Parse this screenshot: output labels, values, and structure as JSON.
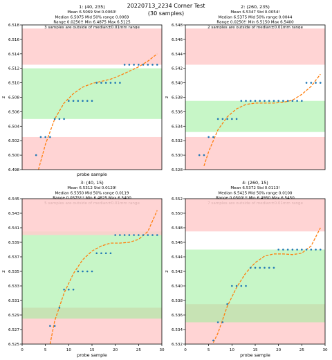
{
  "figure": {
    "title": "20220713_2234 Corner Test",
    "subtitle": "(30 samples)"
  },
  "chart_data": [
    {
      "type": "scatter",
      "subplot": "top-left",
      "header": [
        "1: (40, 235)",
        "Mean 6.5069  Std 0.0060!",
        "Median 6.5075  Mid 50% range 0.0069",
        "Range 0.0250!!  Min 6.4875  Max 6.5125",
        "3 samples are outside of median±0.01mm range"
      ],
      "xlabel": "probe sample",
      "ylabel": "z",
      "xlim": [
        0,
        30
      ],
      "ylim": [
        6.498,
        6.518
      ],
      "xticks": [],
      "yticks": [
        "6.498",
        "6.500",
        "6.502",
        "6.504",
        "6.506",
        "6.508",
        "6.510",
        "6.512",
        "6.514",
        "6.516",
        "6.518"
      ],
      "bands": [
        {
          "from": 6.4975,
          "to": 6.5025,
          "color": "#ffcccc"
        },
        {
          "from": 6.505,
          "to": 6.512,
          "color": "#99ee99"
        },
        {
          "from": 6.5125,
          "to": 6.5175,
          "color": "#ffcccc"
        }
      ],
      "points": {
        "x": [
          3,
          4,
          5,
          6,
          7,
          8,
          9,
          10,
          11,
          12,
          13,
          14,
          15,
          16,
          17,
          18,
          19,
          20,
          21,
          22,
          23,
          24,
          25,
          26,
          27,
          28,
          29
        ],
        "y": [
          6.5,
          6.5025,
          6.5025,
          6.5025,
          6.505,
          6.505,
          6.505,
          6.5075,
          6.5075,
          6.5075,
          6.5075,
          6.5075,
          6.5075,
          6.51,
          6.51,
          6.51,
          6.51,
          6.51,
          6.51,
          6.5125,
          6.5125,
          6.5125,
          6.5125,
          6.5125,
          6.5125,
          6.5125,
          6.5125
        ]
      },
      "fit_curve": {
        "x": [
          3.5,
          5,
          7,
          9,
          11,
          13,
          15,
          17,
          19,
          21,
          23,
          25,
          27,
          29
        ],
        "y": [
          6.498,
          6.5015,
          6.505,
          6.5072,
          6.5085,
          6.5094,
          6.5099,
          6.5102,
          6.5105,
          6.511,
          6.5116,
          6.5122,
          6.513,
          6.514
        ]
      },
      "point_color": "#1f77b4",
      "curve_color": "#ff7f0e"
    },
    {
      "type": "scatter",
      "subplot": "top-right",
      "header": [
        "2: (260, 235)",
        "Mean 6.5347  Std 0.0054!",
        "Median 6.5375  Mid 50% range 0.0044",
        "Range 0.0250!!  Min 6.5150  Max 6.5400",
        "2 samples are outside of median±0.01mm range"
      ],
      "xlabel": "",
      "ylabel": "z",
      "xlim": [
        0,
        30
      ],
      "ylim": [
        6.528,
        6.548
      ],
      "xticks": [],
      "yticks": [
        "6.528",
        "6.530",
        "6.532",
        "6.534",
        "6.536",
        "6.538",
        "6.540",
        "6.542",
        "6.544",
        "6.546",
        "6.548"
      ],
      "bands": [
        {
          "from": 6.5275,
          "to": 6.5325,
          "color": "#ffcccc"
        },
        {
          "from": 6.5332,
          "to": 6.5375,
          "color": "#99ee99"
        },
        {
          "from": 6.5425,
          "to": 6.5475,
          "color": "#ffcccc"
        }
      ],
      "points": {
        "x": [
          3,
          4,
          5,
          6,
          7,
          8,
          9,
          10,
          11,
          12,
          13,
          14,
          15,
          16,
          17,
          18,
          19,
          20,
          21,
          22,
          23,
          24,
          25,
          26,
          27,
          28,
          29
        ],
        "y": [
          6.53,
          6.53,
          6.5325,
          6.5325,
          6.535,
          6.535,
          6.535,
          6.535,
          6.535,
          6.5375,
          6.5375,
          6.5375,
          6.5375,
          6.5375,
          6.5375,
          6.5375,
          6.5375,
          6.5375,
          6.5375,
          6.5375,
          6.5375,
          6.5375,
          6.5375,
          6.54,
          6.54,
          6.54,
          6.54
        ]
      },
      "fit_curve": {
        "x": [
          4,
          5,
          7,
          9,
          11,
          13,
          15,
          17,
          19,
          21,
          23,
          25,
          27,
          29
        ],
        "y": [
          6.5285,
          6.5305,
          6.5335,
          6.5353,
          6.5364,
          6.537,
          6.5372,
          6.5372,
          6.5372,
          6.5373,
          6.5376,
          6.5384,
          6.5395,
          6.5412
        ]
      },
      "point_color": "#1f77b4",
      "curve_color": "#ff7f0e"
    },
    {
      "type": "scatter",
      "subplot": "bottom-left",
      "header": [
        "3: (40, 15)",
        "Mean 6.5312  Std 0.0129!",
        "Median 6.5350  Mid 50% range 0.0119",
        "Range 0.0575!!!  Min 6.4825  Max 6.5400",
        "5 samples are outside of median±0.01mm range"
      ],
      "xlabel": "probe sample",
      "ylabel": "z",
      "xlim": [
        0,
        30
      ],
      "ylim": [
        6.525,
        6.545
      ],
      "xticks": [
        "0",
        "5",
        "10",
        "15",
        "20",
        "25",
        "30"
      ],
      "yticks": [
        "6.525",
        "6.527",
        "6.529",
        "6.531",
        "6.533",
        "6.535",
        "6.537",
        "6.539",
        "6.541",
        "6.543",
        "6.545"
      ],
      "bands": [
        {
          "from": 6.525,
          "to": 6.53,
          "color": "#ffcccc"
        },
        {
          "from": 6.5285,
          "to": 6.5405,
          "color": "#99ee99"
        },
        {
          "from": 6.54,
          "to": 6.545,
          "color": "#ffcccc"
        }
      ],
      "points": {
        "x": [
          6,
          7,
          8,
          9,
          10,
          11,
          12,
          13,
          14,
          15,
          16,
          17,
          18,
          19,
          20,
          21,
          22,
          23,
          24,
          25,
          26,
          27,
          28,
          29
        ],
        "y": [
          6.5275,
          6.5275,
          6.53,
          6.5325,
          6.5325,
          6.5325,
          6.535,
          6.535,
          6.535,
          6.535,
          6.5375,
          6.5375,
          6.5375,
          6.5375,
          6.54,
          6.54,
          6.54,
          6.54,
          6.54,
          6.54,
          6.54,
          6.54,
          6.54,
          6.54
        ]
      },
      "fit_curve": {
        "x": [
          6,
          7,
          9,
          11,
          13,
          15,
          17,
          19,
          21,
          23,
          25,
          27,
          29
        ],
        "y": [
          6.525,
          6.5282,
          6.532,
          6.5347,
          6.5366,
          6.5378,
          6.5385,
          6.5389,
          6.5389,
          6.539,
          6.5394,
          6.5405,
          6.5434
        ]
      },
      "point_color": "#1f77b4",
      "curve_color": "#ff7f0e"
    },
    {
      "type": "scatter",
      "subplot": "bottom-right",
      "header": [
        "4: (260, 15)",
        "Mean 6.5372  Std 0.0113!",
        "Median 6.5425  Mid 50% range 0.0100",
        "Range 0.0500!!!  Min 6.4950  Max 6.5450",
        "7 samples are outside of median±0.01mm range"
      ],
      "xlabel": "probe sample",
      "ylabel": "z",
      "xlim": [
        0,
        30
      ],
      "ylim": [
        6.532,
        6.552
      ],
      "xticks": [
        "0",
        "5",
        "10",
        "15",
        "20",
        "25",
        "30"
      ],
      "yticks": [
        "6.532",
        "6.534",
        "6.536",
        "6.538",
        "6.540",
        "6.542",
        "6.544",
        "6.546",
        "6.548",
        "6.550",
        "6.552"
      ],
      "bands": [
        {
          "from": 6.532,
          "to": 6.5375,
          "color": "#ffcccc"
        },
        {
          "from": 6.535,
          "to": 6.545,
          "color": "#99ee99"
        },
        {
          "from": 6.5475,
          "to": 6.552,
          "color": "#ffcccc"
        }
      ],
      "points": {
        "x": [
          6,
          7,
          8,
          9,
          10,
          11,
          12,
          13,
          14,
          15,
          16,
          17,
          18,
          19,
          20,
          21,
          22,
          23,
          24,
          25,
          26,
          27,
          28,
          29
        ],
        "y": [
          6.5325,
          6.535,
          6.535,
          6.5375,
          6.54,
          6.54,
          6.54,
          6.54,
          6.5425,
          6.5425,
          6.5425,
          6.5425,
          6.5425,
          6.5425,
          6.545,
          6.545,
          6.545,
          6.545,
          6.545,
          6.545,
          6.545,
          6.545,
          6.545,
          6.545
        ]
      },
      "fit_curve": {
        "x": [
          6,
          7,
          9,
          11,
          13,
          15,
          17,
          19,
          21,
          23,
          25,
          27,
          29
        ],
        "y": [
          6.5322,
          6.5335,
          6.5372,
          6.5398,
          6.5418,
          6.5432,
          6.5441,
          6.5444,
          6.5444,
          6.5443,
          6.5445,
          6.5455,
          6.548
        ]
      },
      "point_color": "#1f77b4",
      "curve_color": "#ff7f0e"
    }
  ]
}
